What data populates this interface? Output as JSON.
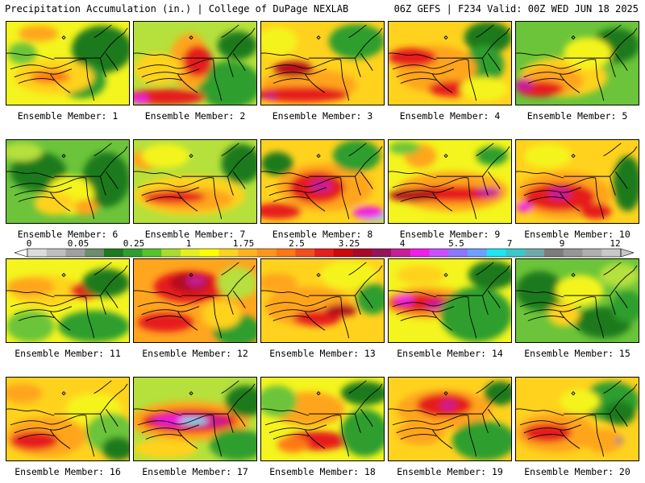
{
  "header": {
    "left": "Precipitation Accumulation (in.) | College of DuPage NEXLAB",
    "right": "06Z GEFS | F234 Valid: 00Z WED JUN 18 2025"
  },
  "colorbar": {
    "tick_labels": [
      "0",
      "0.05",
      "0.25",
      "1",
      "1.75",
      "2.5",
      "3.25",
      "4",
      "5.5",
      "7",
      "9",
      "12"
    ],
    "colors": [
      "#dcdcdc",
      "#bebebe",
      "#a0a0a0",
      "#6e8c6e",
      "#1e7a1e",
      "#2e9e2e",
      "#56c22e",
      "#a8dc2e",
      "#e6f01e",
      "#ffff00",
      "#ffd21e",
      "#ffb41e",
      "#ff961e",
      "#ff7814",
      "#f0501e",
      "#e61e1e",
      "#cc0a0a",
      "#aa0a28",
      "#96145a",
      "#c81e96",
      "#f01ee6",
      "#c850ff",
      "#8c78ff",
      "#6ea0ff",
      "#1ee6f0",
      "#3cc8c8",
      "#6eaaaa",
      "#7d7d7d",
      "#969696",
      "#afafaf",
      "#c8c8c8"
    ]
  },
  "members": [
    {
      "label": "Ensemble Member: 1"
    },
    {
      "label": "Ensemble Member: 2"
    },
    {
      "label": "Ensemble Member: 3"
    },
    {
      "label": "Ensemble Member: 4"
    },
    {
      "label": "Ensemble Member: 5"
    },
    {
      "label": "Ensemble Member: 6"
    },
    {
      "label": "Ensemble Member: 7"
    },
    {
      "label": "Ensemble Member: 8"
    },
    {
      "label": "Ensemble Member: 9"
    },
    {
      "label": "Ensemble Member: 10"
    },
    {
      "label": "Ensemble Member: 11"
    },
    {
      "label": "Ensemble Member: 12"
    },
    {
      "label": "Ensemble Member: 13"
    },
    {
      "label": "Ensemble Member: 14"
    },
    {
      "label": "Ensemble Member: 15"
    },
    {
      "label": "Ensemble Member: 16"
    },
    {
      "label": "Ensemble Member: 17"
    },
    {
      "label": "Ensemble Member: 18"
    },
    {
      "label": "Ensemble Member: 19"
    },
    {
      "label": "Ensemble Member: 20"
    }
  ]
}
